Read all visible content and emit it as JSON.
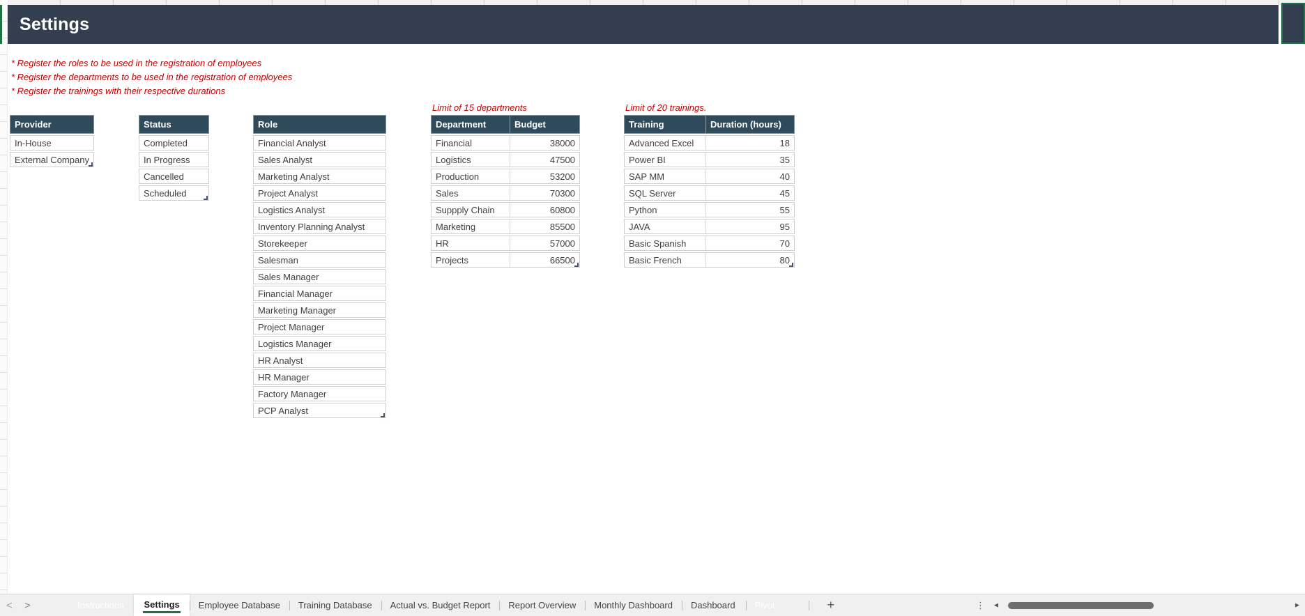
{
  "header": {
    "title": "Settings"
  },
  "instructions": [
    "* Register the roles to be used in the registration of employees",
    "* Register the departments to be used in the registration of employees",
    "* Register the trainings with their respective durations"
  ],
  "notes": {
    "departments": "Limit of 15 departments",
    "trainings": "Limit of 20 trainings."
  },
  "tables": {
    "provider": {
      "headers": [
        "Provider"
      ],
      "rows": [
        "In-House",
        "External Company"
      ]
    },
    "status": {
      "headers": [
        "Status"
      ],
      "rows": [
        "Completed",
        "In Progress",
        "Cancelled",
        "Scheduled"
      ]
    },
    "role": {
      "headers": [
        "Role"
      ],
      "rows": [
        "Financial Analyst",
        "Sales Analyst",
        "Marketing Analyst",
        "Project Analyst",
        "Logistics Analyst",
        "Inventory Planning Analyst",
        "Storekeeper",
        "Salesman",
        "Sales Manager",
        "Financial Manager",
        "Marketing Manager",
        "Project Manager",
        "Logistics Manager",
        "HR Analyst",
        "HR Manager",
        "Factory Manager",
        "PCP Analyst"
      ]
    },
    "department": {
      "headers": [
        "Department",
        "Budget"
      ],
      "rows": [
        [
          "Financial",
          38000
        ],
        [
          "Logistics",
          47500
        ],
        [
          "Production",
          53200
        ],
        [
          "Sales",
          70300
        ],
        [
          "Suppply Chain",
          60800
        ],
        [
          "Marketing",
          85500
        ],
        [
          "HR",
          57000
        ],
        [
          "Projects",
          66500
        ]
      ]
    },
    "training": {
      "headers": [
        "Training",
        "Duration (hours)"
      ],
      "rows": [
        [
          "Advanced Excel",
          18
        ],
        [
          "Power BI",
          35
        ],
        [
          "SAP MM",
          40
        ],
        [
          "SQL Server",
          45
        ],
        [
          "Python",
          55
        ],
        [
          "JAVA",
          95
        ],
        [
          "Basic Spanish",
          70
        ],
        [
          "Basic French",
          80
        ]
      ]
    }
  },
  "sheet_tabs": [
    {
      "label": "Instructions",
      "type": "dark"
    },
    {
      "label": "Settings",
      "type": "active"
    },
    {
      "label": "Employee Database",
      "type": "normal"
    },
    {
      "label": "Training Database",
      "type": "normal"
    },
    {
      "label": "Actual vs. Budget Report",
      "type": "normal"
    },
    {
      "label": "Report Overview",
      "type": "normal"
    },
    {
      "label": "Monthly Dashboard",
      "type": "normal"
    },
    {
      "label": "Dashboard",
      "type": "normal"
    },
    {
      "label": "Pivot",
      "type": "dark"
    }
  ],
  "tab_bar": {
    "nav_left": "<",
    "nav_right": ">",
    "add_label": "+",
    "more_icon": "⋮",
    "scroll_left_icon": "◄",
    "scroll_right_icon": "►"
  },
  "colors": {
    "title_bar": "#333F50",
    "table_header": "#2E4A5B",
    "tab_dark": "#2F3B4C",
    "accent_green": "#217346",
    "note_red": "#C00000"
  }
}
